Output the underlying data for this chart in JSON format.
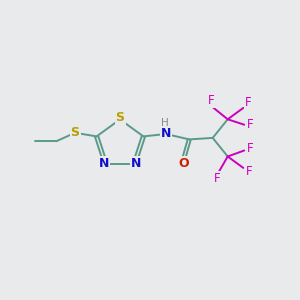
{
  "bg_color": "#e8eaec",
  "bond_color": "#5a9a8a",
  "S_color": "#b8a000",
  "N_color": "#1010cc",
  "O_color": "#cc2000",
  "F_color": "#cc00bb",
  "H_color": "#888888",
  "font_size": 8.5,
  "bond_width": 1.4,
  "xlim": [
    0,
    10
  ],
  "ylim": [
    0,
    10
  ]
}
